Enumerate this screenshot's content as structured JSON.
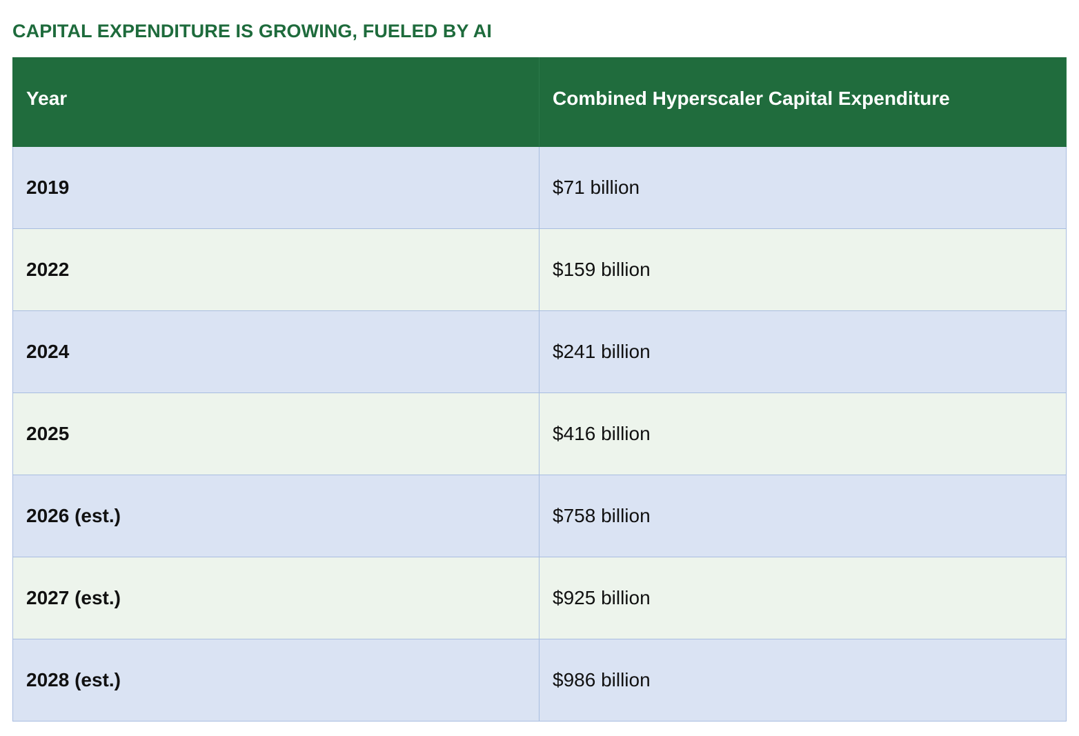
{
  "title": "CAPITAL EXPENDITURE IS GROWING, FUELED BY AI",
  "colors": {
    "title": "#1e6b3c",
    "header_bg": "#206c3d",
    "row_blue": "#dae3f3",
    "row_green": "#edf4ec",
    "border": "#a8bde0"
  },
  "table": {
    "headers": [
      "Year",
      "Combined Hyperscaler Capital Expenditure"
    ],
    "rows": [
      {
        "year": "2019",
        "value": "$71 billion"
      },
      {
        "year": "2022",
        "value": "$159 billion"
      },
      {
        "year": "2024",
        "value": "$241 billion"
      },
      {
        "year": "2025",
        "value": "$416 billion"
      },
      {
        "year": "2026 (est.)",
        "value": "$758 billion"
      },
      {
        "year": "2027 (est.)",
        "value": "$925 billion"
      },
      {
        "year": "2028 (est.)",
        "value": "$986 billion"
      }
    ]
  }
}
